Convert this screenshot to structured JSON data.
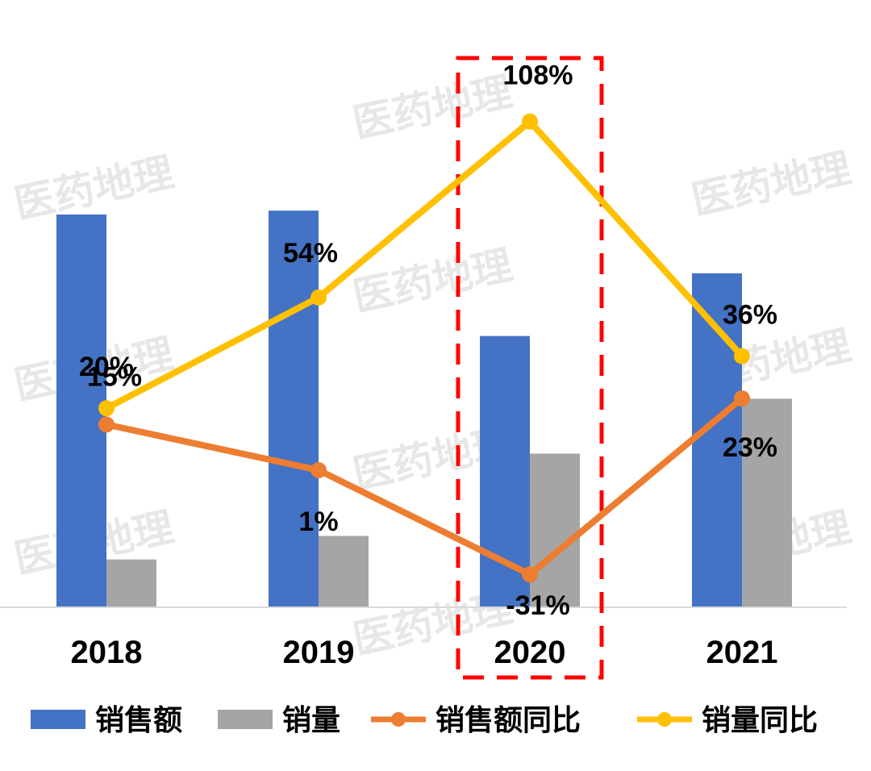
{
  "chart_data": {
    "type": "bar",
    "categories": [
      "2018",
      "2019",
      "2020",
      "2021"
    ],
    "series": [
      {
        "name": "销售额",
        "kind": "bar",
        "axis": "left",
        "color": "#4472C4",
        "values": [
          100,
          101,
          69,
          85
        ]
      },
      {
        "name": "销量",
        "kind": "bar",
        "axis": "left",
        "color": "#A5A5A5",
        "values": [
          12,
          18,
          39,
          53
        ]
      },
      {
        "name": "销售额同比",
        "kind": "line",
        "axis": "right",
        "color": "#ED7D31",
        "values": [
          15,
          1,
          -31,
          23
        ],
        "labels": [
          "15%",
          "1%",
          "-31%",
          "23%"
        ]
      },
      {
        "name": "销量同比",
        "kind": "line",
        "axis": "right",
        "color": "#FFC000",
        "values": [
          20,
          54,
          108,
          36
        ],
        "labels": [
          "20%",
          "54%",
          "108%",
          "36%"
        ]
      }
    ],
    "highlight": {
      "category": "2020",
      "style": "red dashed box",
      "color": "#FF0000"
    },
    "grid": false,
    "legend": "bottom",
    "watermark": "医药地理",
    "title": "",
    "xlabel": "",
    "ylabel": ""
  }
}
